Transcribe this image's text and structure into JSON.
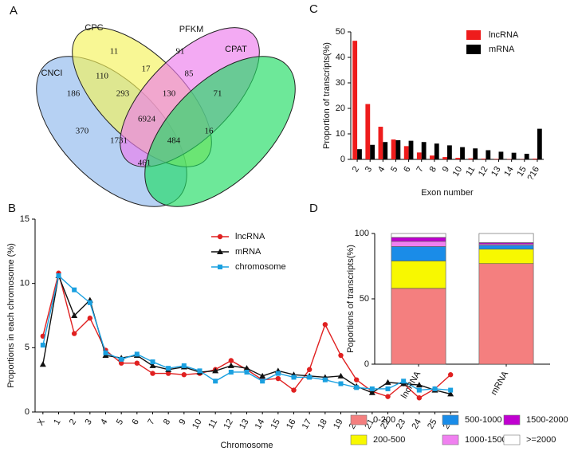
{
  "chart_data": [
    {
      "type": "venn",
      "panel": "A",
      "sets": [
        {
          "name": "CNCI",
          "color": "#8fb8ec"
        },
        {
          "name": "CPC",
          "color": "#f4f25a"
        },
        {
          "name": "PFKM",
          "color": "#ec7cec"
        },
        {
          "name": "CPAT",
          "color": "#1edc62"
        }
      ],
      "values": [
        186,
        110,
        11,
        17,
        91,
        85,
        71,
        293,
        130,
        6924,
        370,
        16,
        1731,
        484,
        461
      ]
    },
    {
      "type": "line",
      "panel": "B",
      "x_label": "Chromosome",
      "y_label": "Proportions in each chromosome (%)",
      "categories": [
        "X",
        "1",
        "2",
        "3",
        "4",
        "5",
        "6",
        "7",
        "8",
        "9",
        "10",
        "11",
        "12",
        "13",
        "14",
        "15",
        "16",
        "17",
        "18",
        "19",
        "20",
        "21",
        "22",
        "23",
        "24",
        "25",
        "26"
      ],
      "ylim": [
        0,
        15
      ],
      "yticks": [
        0,
        5,
        10,
        15
      ],
      "series": [
        {
          "name": "lncRNA",
          "color": "#e02020",
          "marker": "circle",
          "values": [
            5.9,
            10.8,
            6.1,
            7.3,
            4.8,
            3.8,
            3.8,
            3.0,
            3.0,
            2.9,
            3.0,
            3.3,
            4.0,
            3.3,
            2.5,
            2.6,
            1.7,
            3.3,
            6.8,
            4.4,
            2.5,
            1.6,
            1.2,
            2.2,
            1.1,
            1.8,
            2.9
          ]
        },
        {
          "name": "mRNA",
          "color": "#111111",
          "marker": "triangle",
          "values": [
            3.7,
            10.6,
            7.5,
            8.7,
            4.4,
            4.2,
            4.4,
            3.6,
            3.3,
            3.5,
            3.1,
            3.2,
            3.6,
            3.4,
            2.8,
            3.2,
            2.9,
            2.8,
            2.7,
            2.8,
            2.0,
            1.5,
            2.3,
            2.2,
            2.1,
            1.7,
            1.4
          ]
        },
        {
          "name": "chromosome",
          "color": "#1aa0e0",
          "marker": "square",
          "values": [
            5.2,
            10.6,
            9.5,
            8.5,
            4.6,
            4.1,
            4.5,
            3.9,
            3.4,
            3.6,
            3.2,
            2.4,
            3.1,
            3.1,
            2.4,
            3.0,
            2.7,
            2.7,
            2.5,
            2.2,
            1.9,
            1.8,
            1.8,
            2.4,
            1.7,
            1.8,
            1.7
          ]
        }
      ]
    },
    {
      "type": "bar",
      "panel": "C",
      "x_label": "Exon number",
      "y_label": "Proportion of transcripts(%)",
      "categories": [
        "2",
        "3",
        "4",
        "5",
        "6",
        "7",
        "8",
        "9",
        "10",
        "11",
        "12",
        "13",
        "14",
        "15",
        "?16"
      ],
      "ylim": [
        0,
        50
      ],
      "yticks": [
        0,
        10,
        20,
        30,
        40,
        50
      ],
      "series": [
        {
          "name": "lncRNA",
          "color": "#ee1c1c",
          "values": [
            46.5,
            21.7,
            12.8,
            7.8,
            5.2,
            2.7,
            1.5,
            0.9,
            0.6,
            0.4,
            0.3,
            0.2,
            0.15,
            0.1,
            0.3
          ]
        },
        {
          "name": "mRNA",
          "color": "#000000",
          "values": [
            4.0,
            5.7,
            6.8,
            7.5,
            7.3,
            6.8,
            6.2,
            5.5,
            4.8,
            4.3,
            3.6,
            3.0,
            2.6,
            2.2,
            12.0
          ]
        }
      ]
    },
    {
      "type": "stacked",
      "panel": "D",
      "y_label": "Poportions of transcripts(%)",
      "categories": [
        "lncRNA",
        "mRNA"
      ],
      "ylim": [
        0,
        100
      ],
      "yticks": [
        0,
        50,
        100
      ],
      "series": [
        {
          "name": "0-200",
          "color": "#f47f7f",
          "values": [
            58,
            77
          ]
        },
        {
          "name": "200-500",
          "color": "#f8f800",
          "values": [
            21,
            11
          ]
        },
        {
          "name": "500-1000",
          "color": "#1a8ce8",
          "values": [
            11,
            3
          ]
        },
        {
          "name": "1000-1500",
          "color": "#f080f0",
          "values": [
            4,
            1
          ]
        },
        {
          "name": "1500-2000",
          "color": "#c000d0",
          "values": [
            3,
            1
          ]
        },
        {
          "name": ">=2000",
          "color": "#ffffff",
          "values": [
            3,
            7
          ]
        }
      ]
    }
  ]
}
